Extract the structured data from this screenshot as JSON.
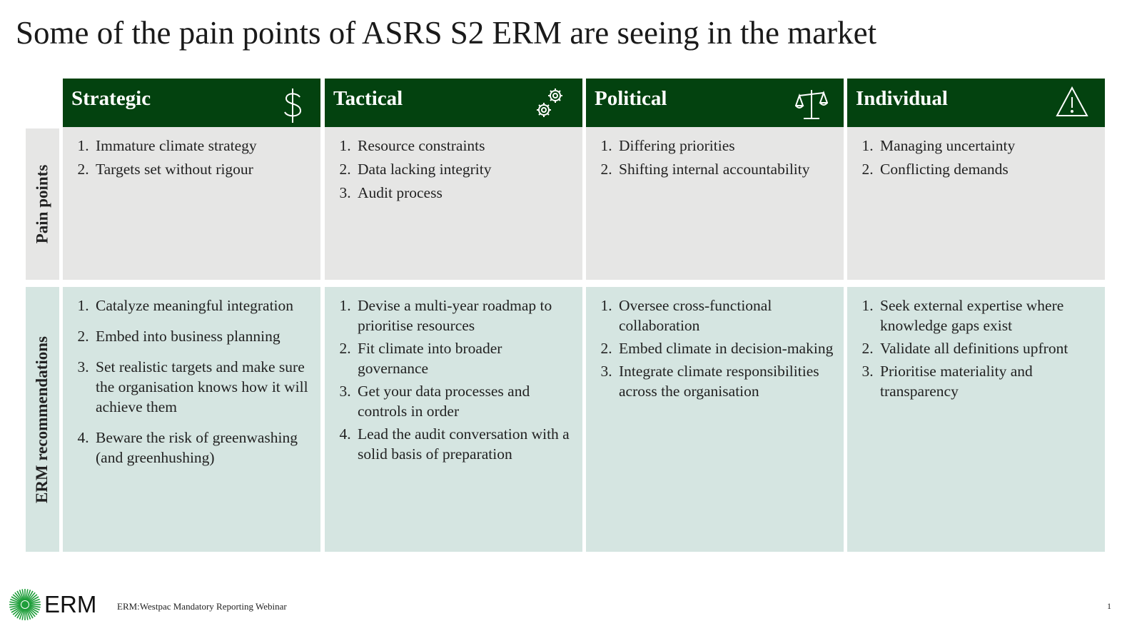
{
  "title": "Some of the pain points of ASRS S2 ERM are seeing in the market",
  "row_labels": [
    "Pain points",
    "ERM recommendations"
  ],
  "columns": [
    {
      "heading": "Strategic",
      "pain_points": [
        "Immature climate strategy",
        "Targets set without rigour"
      ],
      "recommendations": [
        "Catalyze meaningful integration",
        "Embed into business planning",
        "Set realistic targets and make sure the organisation knows how it will achieve them",
        "Beware the risk of greenwashing (and greenhushing)"
      ]
    },
    {
      "heading": "Tactical",
      "pain_points": [
        "Resource constraints",
        "Data lacking integrity",
        "Audit process"
      ],
      "recommendations": [
        "Devise a multi-year roadmap to prioritise resources",
        "Fit climate into broader governance",
        "Get your data processes and controls in order",
        "Lead the audit conversation with a solid basis of preparation"
      ]
    },
    {
      "heading": "Political",
      "pain_points": [
        "Differing priorities",
        "Shifting internal accountability"
      ],
      "recommendations": [
        "Oversee cross-functional collaboration",
        "Embed climate in decision-making",
        "Integrate climate responsibilities across the organisation"
      ]
    },
    {
      "heading": "Individual",
      "pain_points": [
        "Managing uncertainty",
        "Conflicting demands"
      ],
      "recommendations": [
        "Seek external expertise where knowledge gaps exist",
        "Validate all definitions upfront",
        "Prioritise materiality and transparency"
      ]
    }
  ],
  "footer": {
    "logo_text": "ERM",
    "text": "ERM:Westpac Mandatory Reporting Webinar",
    "page_number": "1"
  }
}
